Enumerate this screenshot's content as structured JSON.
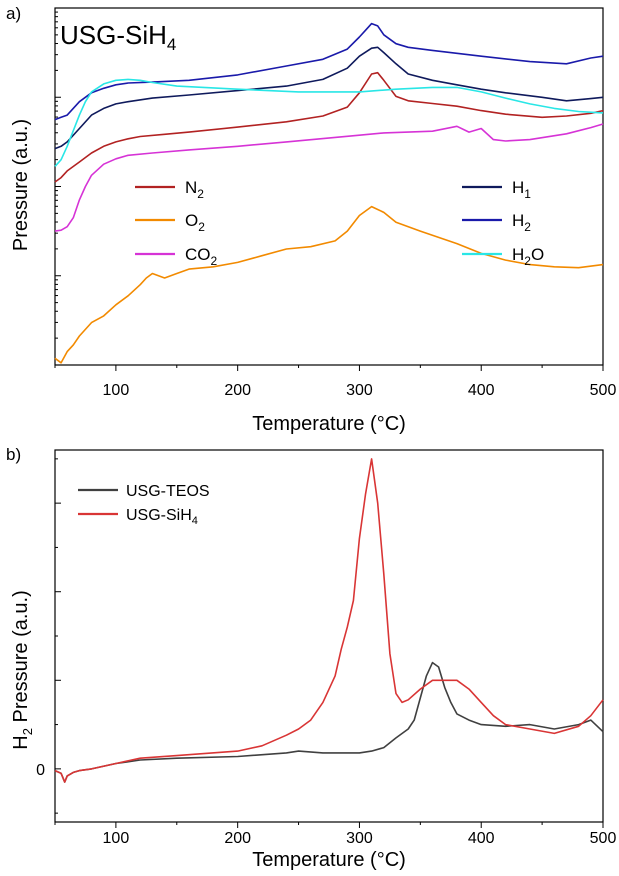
{
  "chart_data": [
    {
      "panel_label": "a)",
      "type": "line",
      "inset_title": "USG-SiH",
      "inset_title_sub": "4",
      "xlabel": "Temperature (°C)",
      "ylabel": "Pressure (a.u.)",
      "xlim": [
        50,
        500
      ],
      "y_scale": "log",
      "y_tick_labels_shown": false,
      "xticks": [
        100,
        200,
        300,
        400,
        500
      ],
      "xtick_labels": [
        "100",
        "200",
        "300",
        "400",
        "500"
      ],
      "legend_placement": "inside, two columns",
      "series": [
        {
          "name": "N",
          "sub": "2",
          "color": "#b22222",
          "x": [
            50,
            55,
            60,
            70,
            80,
            90,
            100,
            110,
            120,
            140,
            160,
            200,
            240,
            270,
            290,
            300,
            310,
            315,
            320,
            330,
            340,
            360,
            380,
            400,
            420,
            450,
            470,
            490,
            500
          ],
          "y": [
            4.1,
            4.2,
            4.35,
            4.55,
            4.75,
            4.9,
            5.0,
            5.07,
            5.12,
            5.17,
            5.22,
            5.33,
            5.45,
            5.58,
            5.78,
            6.1,
            6.52,
            6.55,
            6.38,
            6.02,
            5.92,
            5.86,
            5.8,
            5.7,
            5.62,
            5.55,
            5.58,
            5.64,
            5.7
          ]
        },
        {
          "name": "O",
          "sub": "2",
          "color": "#f28a00",
          "x": [
            50,
            55,
            60,
            65,
            70,
            80,
            90,
            100,
            110,
            120,
            125,
            130,
            140,
            150,
            160,
            180,
            200,
            220,
            240,
            260,
            280,
            290,
            300,
            310,
            320,
            330,
            350,
            380,
            400,
            420,
            440,
            460,
            480,
            500
          ],
          "y": [
            0.15,
            0.05,
            0.3,
            0.45,
            0.65,
            0.95,
            1.1,
            1.35,
            1.55,
            1.8,
            1.95,
            2.05,
            1.95,
            2.05,
            2.15,
            2.2,
            2.3,
            2.45,
            2.6,
            2.65,
            2.78,
            3.0,
            3.35,
            3.55,
            3.42,
            3.2,
            3.0,
            2.72,
            2.5,
            2.35,
            2.25,
            2.2,
            2.18,
            2.25
          ]
        },
        {
          "name": "CO",
          "sub": "2",
          "color": "#d633d6",
          "x": [
            50,
            55,
            60,
            65,
            70,
            75,
            80,
            90,
            100,
            110,
            130,
            160,
            200,
            240,
            280,
            300,
            320,
            340,
            360,
            380,
            390,
            400,
            410,
            420,
            440,
            470,
            490,
            500
          ],
          "y": [
            3.0,
            3.02,
            3.1,
            3.3,
            3.7,
            4.0,
            4.25,
            4.5,
            4.62,
            4.7,
            4.75,
            4.82,
            4.9,
            5.0,
            5.1,
            5.15,
            5.2,
            5.22,
            5.24,
            5.35,
            5.22,
            5.3,
            5.05,
            5.02,
            5.05,
            5.18,
            5.32,
            5.4
          ]
        },
        {
          "name": "H",
          "sub": "1",
          "color": "#0f1a5c",
          "x": [
            50,
            55,
            60,
            70,
            80,
            90,
            100,
            110,
            130,
            160,
            200,
            240,
            270,
            290,
            300,
            310,
            315,
            320,
            330,
            340,
            360,
            380,
            400,
            420,
            450,
            470,
            490,
            500
          ],
          "y": [
            4.85,
            4.9,
            5.0,
            5.3,
            5.6,
            5.75,
            5.85,
            5.9,
            5.98,
            6.05,
            6.15,
            6.25,
            6.4,
            6.65,
            6.92,
            7.1,
            7.12,
            7.0,
            6.75,
            6.52,
            6.38,
            6.28,
            6.18,
            6.1,
            6.0,
            5.92,
            5.97,
            6.0
          ]
        },
        {
          "name": "H",
          "sub": "2",
          "color": "#1a1aaa",
          "x": [
            50,
            55,
            60,
            70,
            80,
            90,
            100,
            110,
            130,
            160,
            200,
            240,
            270,
            290,
            300,
            305,
            310,
            315,
            320,
            330,
            340,
            360,
            400,
            440,
            470,
            490,
            500
          ],
          "y": [
            5.5,
            5.55,
            5.6,
            5.9,
            6.1,
            6.2,
            6.28,
            6.32,
            6.34,
            6.38,
            6.5,
            6.7,
            6.85,
            7.08,
            7.35,
            7.5,
            7.65,
            7.6,
            7.4,
            7.2,
            7.12,
            7.05,
            6.92,
            6.8,
            6.75,
            6.88,
            6.92
          ]
        },
        {
          "name": "H",
          "sub": "2",
          "extra": "O",
          "color": "#29e6e6",
          "x": [
            50,
            55,
            60,
            65,
            70,
            75,
            80,
            90,
            100,
            110,
            120,
            130,
            150,
            200,
            250,
            300,
            330,
            360,
            380,
            400,
            420,
            440,
            460,
            480,
            500
          ],
          "y": [
            4.45,
            4.6,
            4.9,
            5.25,
            5.6,
            5.9,
            6.12,
            6.3,
            6.38,
            6.4,
            6.38,
            6.33,
            6.25,
            6.18,
            6.12,
            6.12,
            6.18,
            6.22,
            6.22,
            6.12,
            5.98,
            5.85,
            5.75,
            5.68,
            5.65
          ]
        }
      ]
    },
    {
      "panel_label": "b)",
      "type": "line",
      "xlabel": "Temperature (°C)",
      "ylabel": "H",
      "ylabel_sub": "2",
      "ylabel_rest": " Pressure (a.u.)",
      "xlim": [
        50,
        500
      ],
      "ylim": [
        -0.6,
        3.6
      ],
      "xticks": [
        100,
        200,
        300,
        400,
        500
      ],
      "xtick_labels": [
        "100",
        "200",
        "300",
        "400",
        "500"
      ],
      "yticks": [
        0
      ],
      "ytick_labels": [
        "0"
      ],
      "legend_placement": "top-left",
      "series": [
        {
          "name": "USG-TEOS",
          "color": "#404040",
          "x": [
            50,
            55,
            58,
            60,
            65,
            70,
            80,
            100,
            120,
            150,
            200,
            240,
            250,
            270,
            290,
            300,
            310,
            320,
            330,
            340,
            345,
            350,
            355,
            360,
            365,
            370,
            375,
            380,
            390,
            400,
            420,
            440,
            460,
            480,
            490,
            500
          ],
          "y": [
            -0.02,
            -0.05,
            -0.15,
            -0.08,
            -0.04,
            -0.02,
            0.0,
            0.06,
            0.1,
            0.12,
            0.14,
            0.18,
            0.2,
            0.18,
            0.18,
            0.18,
            0.2,
            0.24,
            0.35,
            0.45,
            0.55,
            0.8,
            1.05,
            1.2,
            1.15,
            0.92,
            0.75,
            0.62,
            0.55,
            0.5,
            0.48,
            0.5,
            0.45,
            0.5,
            0.55,
            0.42
          ]
        },
        {
          "name": "USG-SiH",
          "sub": "4",
          "color": "#d93535",
          "x": [
            50,
            55,
            58,
            60,
            65,
            70,
            80,
            100,
            120,
            150,
            200,
            220,
            240,
            250,
            260,
            270,
            280,
            285,
            290,
            295,
            300,
            305,
            310,
            315,
            320,
            325,
            330,
            335,
            340,
            350,
            360,
            370,
            380,
            390,
            400,
            410,
            420,
            440,
            460,
            480,
            490,
            500
          ],
          "y": [
            -0.02,
            -0.05,
            -0.15,
            -0.08,
            -0.04,
            -0.02,
            0.0,
            0.06,
            0.12,
            0.15,
            0.2,
            0.26,
            0.38,
            0.45,
            0.55,
            0.75,
            1.05,
            1.35,
            1.6,
            1.9,
            2.6,
            3.1,
            3.5,
            3.0,
            2.2,
            1.3,
            0.85,
            0.75,
            0.78,
            0.9,
            1.0,
            1.0,
            1.0,
            0.9,
            0.75,
            0.6,
            0.5,
            0.45,
            0.4,
            0.48,
            0.6,
            0.78
          ]
        }
      ]
    }
  ]
}
